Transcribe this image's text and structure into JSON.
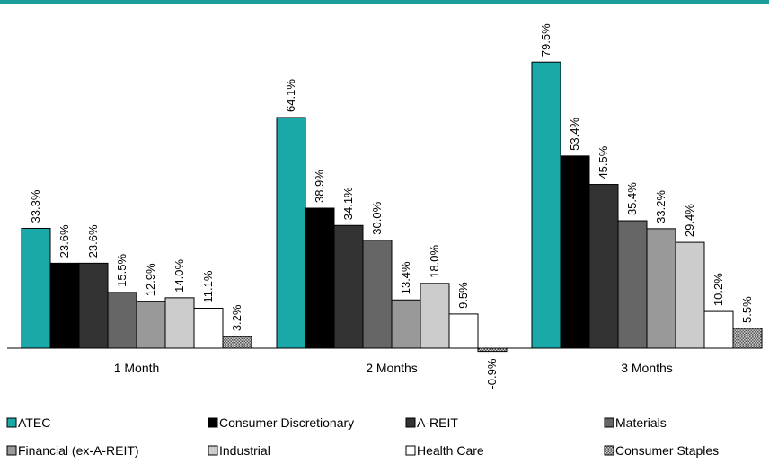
{
  "colors": {
    "accent_bar": "#1b9e9a"
  },
  "chart_data": {
    "type": "bar",
    "categories": [
      "1 Month",
      "2 Months",
      "3 Months"
    ],
    "series": [
      {
        "name": "ATEC",
        "values": [
          33.3,
          64.1,
          79.5
        ],
        "color": "#1aa8a8",
        "pattern": "solid"
      },
      {
        "name": "Consumer Discretionary",
        "values": [
          23.6,
          38.9,
          53.4
        ],
        "color": "#000000",
        "pattern": "solid"
      },
      {
        "name": "A-REIT",
        "values": [
          23.6,
          34.1,
          45.5
        ],
        "color": "#333333",
        "pattern": "solid"
      },
      {
        "name": "Materials",
        "values": [
          15.5,
          30.0,
          35.4
        ],
        "color": "#666666",
        "pattern": "solid"
      },
      {
        "name": "Financial (ex-A-REIT)",
        "values": [
          12.9,
          13.4,
          33.2
        ],
        "color": "#999999",
        "pattern": "solid"
      },
      {
        "name": "Industrial",
        "values": [
          14.0,
          18.0,
          29.4
        ],
        "color": "#cccccc",
        "pattern": "solid"
      },
      {
        "name": "Health Care",
        "values": [
          11.1,
          9.5,
          10.2
        ],
        "color": "#ffffff",
        "pattern": "solid"
      },
      {
        "name": "Consumer Staples",
        "values": [
          3.2,
          -0.9,
          5.5
        ],
        "color": "#777777",
        "pattern": "crosshatch"
      }
    ],
    "value_labels": [
      [
        "33.3%",
        "64.1%",
        "79.5%"
      ],
      [
        "23.6%",
        "38.9%",
        "53.4%"
      ],
      [
        "23.6%",
        "34.1%",
        "45.5%"
      ],
      [
        "15.5%",
        "30.0%",
        "35.4%"
      ],
      [
        "12.9%",
        "13.4%",
        "33.2%"
      ],
      [
        "14.0%",
        "18.0%",
        "29.4%"
      ],
      [
        "11.1%",
        "9.5%",
        "10.2%"
      ],
      [
        "3.2%",
        "-0.9%",
        "5.5%"
      ]
    ],
    "unit": "%",
    "ylim": [
      -1,
      82
    ],
    "grid": false,
    "legend_position": "bottom"
  }
}
